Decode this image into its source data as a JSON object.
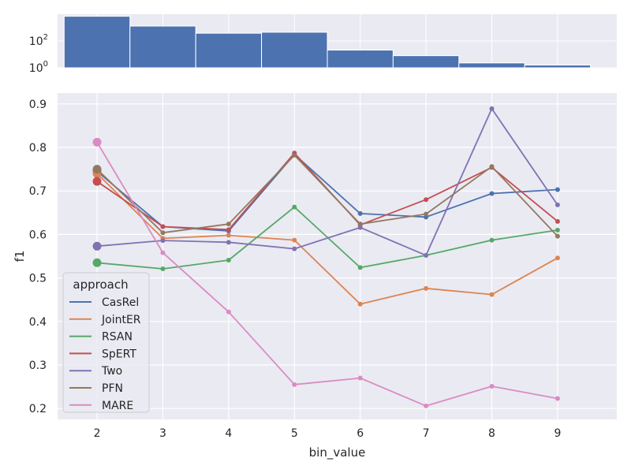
{
  "chart_data": [
    {
      "type": "bar",
      "title": "",
      "xlabel": "",
      "ylabel": "",
      "yscale": "log",
      "categories": [
        "2",
        "3",
        "4",
        "5",
        "6",
        "7",
        "8",
        "9"
      ],
      "values": [
        7000,
        1300,
        380,
        450,
        21,
        8,
        2.3,
        1.6
      ],
      "ylim": [
        1,
        10000
      ],
      "ytick_labels": [
        {
          "base": "10",
          "exp": "0",
          "value": 1
        },
        {
          "base": "10",
          "exp": "2",
          "value": 100
        }
      ],
      "color": "#4c72b0"
    },
    {
      "type": "line",
      "title": "",
      "xlabel": "bin_value",
      "ylabel": "f1",
      "x": [
        2,
        3,
        4,
        5,
        6,
        7,
        8,
        9
      ],
      "xlim": [
        1.4,
        9.9
      ],
      "ylim": [
        0.175,
        0.925
      ],
      "xticks": [
        "2",
        "3",
        "4",
        "5",
        "6",
        "7",
        "8",
        "9"
      ],
      "yticks": [
        "0.2",
        "0.3",
        "0.4",
        "0.5",
        "0.6",
        "0.7",
        "0.8",
        "0.9"
      ],
      "legend": {
        "title": "approach",
        "position": "lower-left"
      },
      "series": [
        {
          "name": "CasRel",
          "color": "#4c72b0",
          "values": [
            0.745,
            0.618,
            0.608,
            0.784,
            0.648,
            0.64,
            0.694,
            0.703
          ]
        },
        {
          "name": "JointER",
          "color": "#dd8452",
          "values": [
            0.74,
            0.591,
            0.598,
            0.587,
            0.44,
            0.476,
            0.462,
            0.546
          ]
        },
        {
          "name": "RSAN",
          "color": "#55a868",
          "values": [
            0.535,
            0.521,
            0.541,
            0.663,
            0.524,
            0.552,
            0.587,
            0.61
          ]
        },
        {
          "name": "SpERT",
          "color": "#c44e52",
          "values": [
            0.722,
            0.618,
            0.611,
            0.787,
            0.622,
            0.68,
            0.754,
            0.63
          ]
        },
        {
          "name": "Two",
          "color": "#8172b3",
          "values": [
            0.573,
            0.586,
            0.582,
            0.567,
            0.616,
            0.552,
            0.889,
            0.668
          ]
        },
        {
          "name": "PFN",
          "color": "#937860",
          "values": [
            0.75,
            0.604,
            0.624,
            0.782,
            0.624,
            0.647,
            0.756,
            0.596
          ]
        },
        {
          "name": "MARE",
          "color": "#da8bc3",
          "values": [
            0.812,
            0.558,
            0.422,
            0.255,
            0.27,
            0.206,
            0.251,
            0.223
          ]
        }
      ]
    }
  ]
}
